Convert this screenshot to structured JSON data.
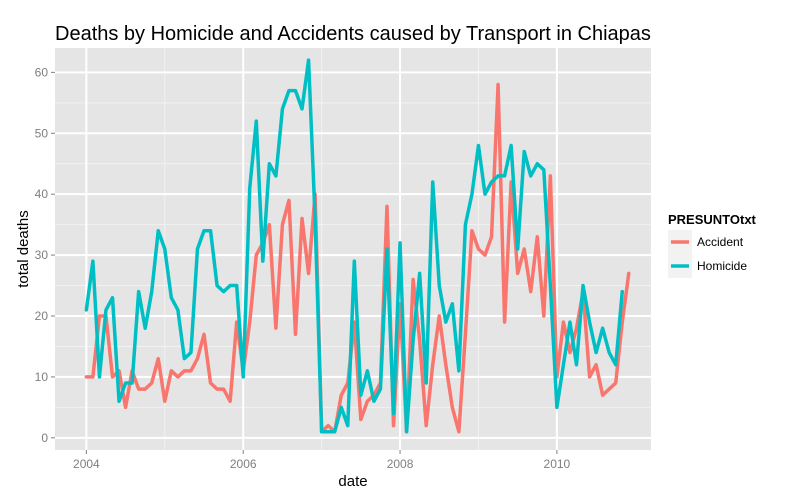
{
  "colors": {
    "panel_bg": "#E5E5E5",
    "grid_major": "#FFFFFF",
    "grid_minor": "#F2F2F2",
    "tick_text": "#7F7F7F",
    "legend_key_bg": "#F2F2F2"
  },
  "chart_data": {
    "type": "line",
    "title": "Deaths by Homicide and Accidents caused by Transport in Chiapas",
    "xlabel": "date",
    "ylabel": "total deaths",
    "x_ticks": [
      2004,
      2006,
      2008,
      2010
    ],
    "y_ticks": [
      0,
      10,
      20,
      30,
      40,
      50,
      60
    ],
    "xlim": [
      2003.6,
      2011.2
    ],
    "ylim": [
      -2,
      64
    ],
    "grid": true,
    "legend": {
      "title": "PRESUNTOtxt",
      "position": "right"
    },
    "x_start_year": 2004,
    "frequency": "monthly",
    "series": [
      {
        "name": "Accident",
        "color": "#F8766D",
        "values": [
          10,
          10,
          20,
          20,
          10,
          11,
          5,
          11,
          8,
          8,
          9,
          13,
          6,
          11,
          10,
          11,
          11,
          13,
          17,
          9,
          8,
          8,
          6,
          19,
          11,
          19,
          30,
          32,
          35,
          18,
          35,
          39,
          17,
          36,
          27,
          40,
          1,
          2,
          1,
          7,
          9,
          19,
          3,
          6,
          7,
          9,
          38,
          2,
          22,
          1,
          26,
          16,
          2,
          12,
          20,
          12,
          5,
          1,
          17,
          34,
          31,
          30,
          33,
          58,
          19,
          42,
          27,
          31,
          24,
          33,
          20,
          43,
          10,
          19,
          14,
          18,
          24,
          10,
          12,
          7,
          8,
          9,
          19,
          27
        ]
      },
      {
        "name": "Homicide",
        "color": "#00BFC4",
        "values": [
          21,
          29,
          10,
          21,
          23,
          6,
          9,
          9,
          24,
          18,
          24,
          34,
          31,
          23,
          21,
          13,
          14,
          31,
          34,
          34,
          25,
          24,
          25,
          25,
          10,
          41,
          52,
          29,
          45,
          43,
          54,
          57,
          57,
          54,
          62,
          36,
          1,
          1,
          1,
          5,
          2,
          29,
          7,
          11,
          6,
          8,
          31,
          4,
          32,
          1,
          16,
          27,
          9,
          42,
          25,
          19,
          22,
          11,
          35,
          40,
          48,
          40,
          42,
          43,
          43,
          48,
          31,
          47,
          43,
          45,
          44,
          25,
          5,
          12,
          19,
          12,
          25,
          19,
          14,
          18,
          14,
          12,
          24
        ]
      }
    ]
  }
}
